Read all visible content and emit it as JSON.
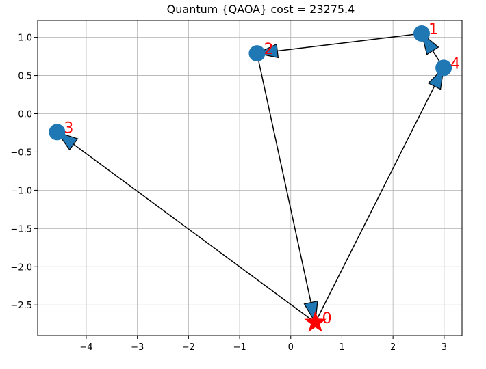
{
  "chart_data": {
    "type": "scatter",
    "title": "Quantum {QAOA} cost = 23275.4",
    "xlabel": "",
    "ylabel": "",
    "xlim": [
      -4.95,
      3.35
    ],
    "ylim": [
      -2.9,
      1.22
    ],
    "xticks": [
      -4,
      -3,
      -2,
      -1,
      0,
      1,
      2,
      3
    ],
    "yticks": [
      -2.5,
      -2.0,
      -1.5,
      -1.0,
      -0.5,
      0.0,
      0.5,
      1.0
    ],
    "xtick_labels": [
      "−4",
      "−3",
      "−2",
      "−1",
      "0",
      "1",
      "2",
      "3"
    ],
    "ytick_labels": [
      "−2.5",
      "−2.0",
      "−1.5",
      "−1.0",
      "−0.5",
      "0.0",
      "0.5",
      "1.0"
    ],
    "grid": true,
    "nodes": [
      {
        "id": "0",
        "x": 0.48,
        "y": -2.73,
        "marker": "star"
      },
      {
        "id": "1",
        "x": 2.56,
        "y": 1.05,
        "marker": "circle"
      },
      {
        "id": "2",
        "x": -0.66,
        "y": 0.79,
        "marker": "circle"
      },
      {
        "id": "3",
        "x": -4.57,
        "y": -0.24,
        "marker": "circle"
      },
      {
        "id": "4",
        "x": 2.99,
        "y": 0.6,
        "marker": "circle"
      }
    ],
    "edges": [
      {
        "from": "0",
        "to": "4"
      },
      {
        "from": "4",
        "to": "1"
      },
      {
        "from": "1",
        "to": "2"
      },
      {
        "from": "2",
        "to": "0"
      },
      {
        "from": "0",
        "to": "3"
      }
    ],
    "colors": {
      "node": "#1f77b4",
      "start": "#ff0000",
      "label": "#ff0000",
      "edge": "#000000",
      "grid": "#b0b0b0"
    }
  }
}
